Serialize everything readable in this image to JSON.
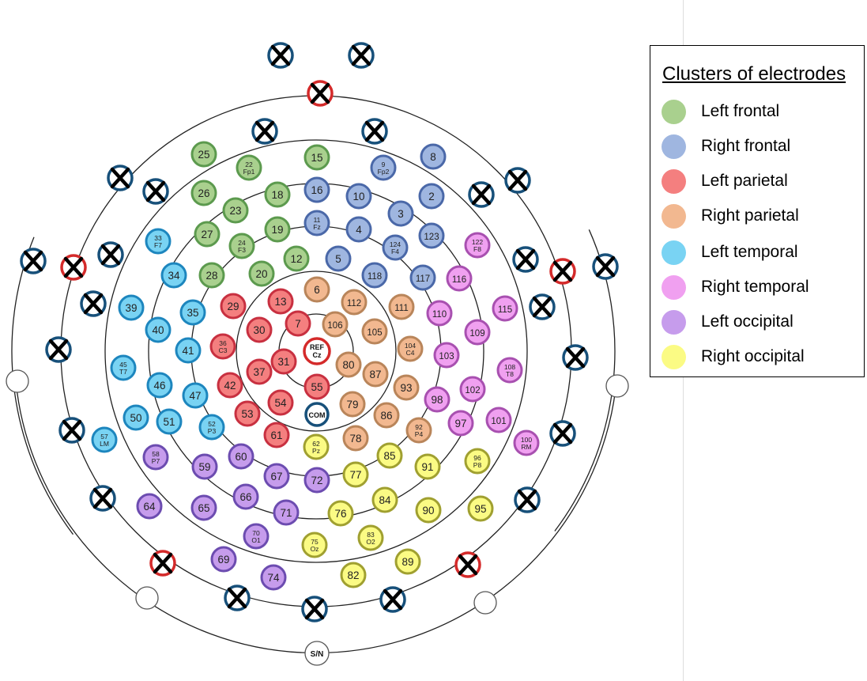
{
  "legend": {
    "title": "Clusters of electrodes",
    "items": [
      {
        "label": "Left frontal",
        "color": "#a9d08e"
      },
      {
        "label": "Right frontal",
        "color": "#9fb6e0"
      },
      {
        "label": "Left parietal",
        "color": "#f47f7f"
      },
      {
        "label": "Right parietal",
        "color": "#f2b890"
      },
      {
        "label": "Left temporal",
        "color": "#79d3f3"
      },
      {
        "label": "Right temporal",
        "color": "#f0a0f0"
      },
      {
        "label": "Left occipital",
        "color": "#c69cec"
      },
      {
        "label": "Right occipital",
        "color": "#fbfb84"
      }
    ]
  },
  "cluster_colors": {
    "LF": {
      "fill": "#a9d08e",
      "stroke": "#5c9a4e"
    },
    "RF": {
      "fill": "#9fb6e0",
      "stroke": "#4a68a8"
    },
    "LP": {
      "fill": "#f47f7f",
      "stroke": "#c83040"
    },
    "RP": {
      "fill": "#f2b890",
      "stroke": "#b9855a"
    },
    "LT": {
      "fill": "#79d3f3",
      "stroke": "#1d86be"
    },
    "RT": {
      "fill": "#f0a0f0",
      "stroke": "#a850b0"
    },
    "LO": {
      "fill": "#c69cec",
      "stroke": "#6c4cb0"
    },
    "RO": {
      "fill": "#fbfb84",
      "stroke": "#a0a030"
    }
  },
  "electrodes": [
    {
      "num": "25",
      "cluster": "LF"
    },
    {
      "num": "22",
      "sub": "Fp1",
      "cluster": "LF"
    },
    {
      "num": "15",
      "cluster": "LF"
    },
    {
      "num": "9",
      "sub": "Fp2",
      "cluster": "RF"
    },
    {
      "num": "8",
      "cluster": "RF"
    },
    {
      "num": "26",
      "cluster": "LF"
    },
    {
      "num": "18",
      "cluster": "LF"
    },
    {
      "num": "16",
      "cluster": "RF"
    },
    {
      "num": "10",
      "cluster": "RF"
    },
    {
      "num": "2",
      "cluster": "RF"
    },
    {
      "num": "23",
      "cluster": "LF"
    },
    {
      "num": "3",
      "cluster": "RF"
    },
    {
      "num": "27",
      "cluster": "LF"
    },
    {
      "num": "24",
      "sub": "F3",
      "cluster": "LF"
    },
    {
      "num": "19",
      "cluster": "LF"
    },
    {
      "num": "11",
      "sub": "Fz",
      "cluster": "RF"
    },
    {
      "num": "4",
      "cluster": "RF"
    },
    {
      "num": "124",
      "sub": "F4",
      "cluster": "RF"
    },
    {
      "num": "123",
      "cluster": "RF"
    },
    {
      "num": "12",
      "cluster": "LF"
    },
    {
      "num": "5",
      "cluster": "RF"
    },
    {
      "num": "28",
      "cluster": "LF"
    },
    {
      "num": "20",
      "cluster": "LF"
    },
    {
      "num": "118",
      "cluster": "RF"
    },
    {
      "num": "117",
      "cluster": "RF"
    },
    {
      "num": "33",
      "sub": "F7",
      "cluster": "LT"
    },
    {
      "num": "34",
      "cluster": "LT"
    },
    {
      "num": "39",
      "cluster": "LT"
    },
    {
      "num": "40",
      "cluster": "LT"
    },
    {
      "num": "35",
      "cluster": "LT"
    },
    {
      "num": "41",
      "cluster": "LT"
    },
    {
      "num": "45",
      "sub": "T7",
      "cluster": "LT"
    },
    {
      "num": "46",
      "cluster": "LT"
    },
    {
      "num": "47",
      "cluster": "LT"
    },
    {
      "num": "50",
      "cluster": "LT"
    },
    {
      "num": "51",
      "cluster": "LT"
    },
    {
      "num": "52",
      "sub": "P3",
      "cluster": "LT"
    },
    {
      "num": "57",
      "sub": "LM",
      "cluster": "LT"
    },
    {
      "num": "122",
      "sub": "F8",
      "cluster": "RT"
    },
    {
      "num": "116",
      "cluster": "RT"
    },
    {
      "num": "115",
      "cluster": "RT"
    },
    {
      "num": "110",
      "cluster": "RT"
    },
    {
      "num": "109",
      "cluster": "RT"
    },
    {
      "num": "103",
      "cluster": "RT"
    },
    {
      "num": "108",
      "sub": "T8",
      "cluster": "RT"
    },
    {
      "num": "102",
      "cluster": "RT"
    },
    {
      "num": "98",
      "cluster": "RT"
    },
    {
      "num": "97",
      "cluster": "RT"
    },
    {
      "num": "101",
      "cluster": "RT"
    },
    {
      "num": "100",
      "sub": "RM",
      "cluster": "RT"
    },
    {
      "num": "29",
      "cluster": "LP"
    },
    {
      "num": "13",
      "cluster": "LP"
    },
    {
      "num": "30",
      "cluster": "LP"
    },
    {
      "num": "7",
      "cluster": "LP"
    },
    {
      "num": "36",
      "sub": "C3",
      "cluster": "LP"
    },
    {
      "num": "31",
      "cluster": "LP"
    },
    {
      "num": "37",
      "cluster": "LP"
    },
    {
      "num": "42",
      "cluster": "LP"
    },
    {
      "num": "55",
      "cluster": "LP"
    },
    {
      "num": "54",
      "cluster": "LP"
    },
    {
      "num": "53",
      "cluster": "LP"
    },
    {
      "num": "61",
      "cluster": "LP"
    },
    {
      "num": "6",
      "cluster": "RP"
    },
    {
      "num": "112",
      "cluster": "RP"
    },
    {
      "num": "111",
      "cluster": "RP"
    },
    {
      "num": "106",
      "cluster": "RP"
    },
    {
      "num": "105",
      "cluster": "RP"
    },
    {
      "num": "104",
      "sub": "C4",
      "cluster": "RP"
    },
    {
      "num": "80",
      "cluster": "RP"
    },
    {
      "num": "87",
      "cluster": "RP"
    },
    {
      "num": "93",
      "cluster": "RP"
    },
    {
      "num": "79",
      "cluster": "RP"
    },
    {
      "num": "86",
      "cluster": "RP"
    },
    {
      "num": "92",
      "sub": "P4",
      "cluster": "RP"
    },
    {
      "num": "78",
      "cluster": "RP"
    },
    {
      "num": "58",
      "sub": "P7",
      "cluster": "LO"
    },
    {
      "num": "59",
      "cluster": "LO"
    },
    {
      "num": "60",
      "cluster": "LO"
    },
    {
      "num": "67",
      "cluster": "LO"
    },
    {
      "num": "72",
      "cluster": "LO"
    },
    {
      "num": "66",
      "cluster": "LO"
    },
    {
      "num": "65",
      "cluster": "LO"
    },
    {
      "num": "64",
      "cluster": "LO"
    },
    {
      "num": "71",
      "cluster": "LO"
    },
    {
      "num": "70",
      "sub": "O1",
      "cluster": "LO"
    },
    {
      "num": "69",
      "cluster": "LO"
    },
    {
      "num": "74",
      "cluster": "LO"
    },
    {
      "num": "62",
      "sub": "Pz",
      "cluster": "RO"
    },
    {
      "num": "85",
      "cluster": "RO"
    },
    {
      "num": "77",
      "cluster": "RO"
    },
    {
      "num": "91",
      "cluster": "RO"
    },
    {
      "num": "96",
      "sub": "P8",
      "cluster": "RO"
    },
    {
      "num": "84",
      "cluster": "RO"
    },
    {
      "num": "76",
      "cluster": "RO"
    },
    {
      "num": "90",
      "cluster": "RO"
    },
    {
      "num": "95",
      "cluster": "RO"
    },
    {
      "num": "83",
      "sub": "O2",
      "cluster": "RO"
    },
    {
      "num": "75",
      "sub": "Oz",
      "cluster": "RO"
    },
    {
      "num": "89",
      "cluster": "RO"
    },
    {
      "num": "82",
      "cluster": "RO"
    }
  ],
  "reference": {
    "num": "REF",
    "sub": "Cz"
  },
  "common": "COM",
  "sn": "S/N",
  "excluded_count": 28,
  "blank_count": 4
}
